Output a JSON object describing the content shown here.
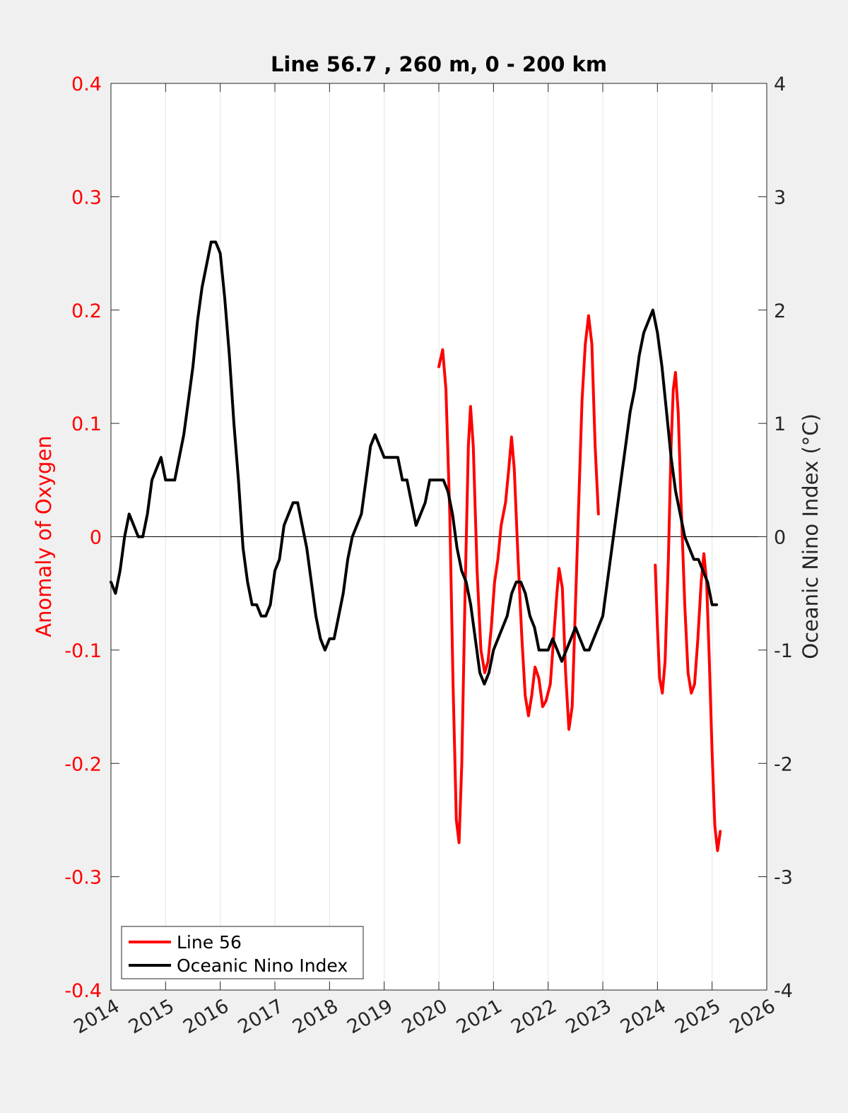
{
  "chart_data": {
    "type": "line",
    "title": "Line 56.7 , 260 m, 0 - 200 km",
    "xlabel": "",
    "ylabel_left": "Anomaly of Oxygen",
    "ylabel_right": "Oceanic Nino Index (°C)",
    "xlim": [
      2014,
      2026
    ],
    "ylim_left": [
      -0.4,
      0.4
    ],
    "ylim_right": [
      -4,
      4
    ],
    "x_ticks": [
      2014,
      2015,
      2016,
      2017,
      2018,
      2019,
      2020,
      2021,
      2022,
      2023,
      2024,
      2025,
      2026
    ],
    "x_tick_labels": [
      "2014",
      "2015",
      "2016",
      "2017",
      "2018",
      "2019",
      "2020",
      "2021",
      "2022",
      "2023",
      "2024",
      "2025",
      "2026"
    ],
    "y_left_ticks": [
      -0.4,
      -0.3,
      -0.2,
      -0.1,
      0,
      0.1,
      0.2,
      0.3,
      0.4
    ],
    "y_left_tick_labels": [
      "-0.4",
      "-0.3",
      "-0.2",
      "-0.1",
      "0",
      "0.1",
      "0.2",
      "0.3",
      "0.4"
    ],
    "y_right_ticks": [
      -4,
      -3,
      -2,
      -1,
      0,
      1,
      2,
      3,
      4
    ],
    "y_right_tick_labels": [
      "-4",
      "-3",
      "-2",
      "-1",
      "0",
      "1",
      "2",
      "3",
      "4"
    ],
    "grid": "vertical only",
    "zero_line": true,
    "legend_position": "bottom-left",
    "colors": {
      "line56": "#ff0000",
      "oni": "#000000",
      "left_axis": "#ff0000",
      "right_axis": "#262626"
    },
    "series": [
      {
        "name": "Line 56",
        "axis": "left",
        "color": "#ff0000",
        "segments": [
          [
            [
              2020.0,
              0.15
            ],
            [
              2020.07,
              0.165
            ],
            [
              2020.13,
              0.13
            ],
            [
              2020.2,
              0.02
            ],
            [
              2020.26,
              -0.13
            ],
            [
              2020.32,
              -0.25
            ],
            [
              2020.37,
              -0.27
            ],
            [
              2020.42,
              -0.2
            ],
            [
              2020.48,
              -0.05
            ],
            [
              2020.54,
              0.08
            ],
            [
              2020.58,
              0.115
            ],
            [
              2020.63,
              0.08
            ],
            [
              2020.7,
              -0.03
            ],
            [
              2020.77,
              -0.1
            ],
            [
              2020.84,
              -0.12
            ],
            [
              2020.9,
              -0.11
            ],
            [
              2020.96,
              -0.08
            ],
            [
              2021.02,
              -0.04
            ],
            [
              2021.08,
              -0.02
            ],
            [
              2021.14,
              0.01
            ],
            [
              2021.22,
              0.03
            ],
            [
              2021.28,
              0.06
            ],
            [
              2021.33,
              0.088
            ],
            [
              2021.38,
              0.06
            ],
            [
              2021.45,
              -0.02
            ],
            [
              2021.52,
              -0.09
            ],
            [
              2021.58,
              -0.14
            ],
            [
              2021.64,
              -0.158
            ],
            [
              2021.7,
              -0.14
            ],
            [
              2021.76,
              -0.115
            ],
            [
              2021.83,
              -0.125
            ],
            [
              2021.9,
              -0.15
            ],
            [
              2021.96,
              -0.145
            ],
            [
              2022.04,
              -0.13
            ],
            [
              2022.1,
              -0.09
            ],
            [
              2022.16,
              -0.05
            ],
            [
              2022.2,
              -0.028
            ],
            [
              2022.26,
              -0.045
            ],
            [
              2022.32,
              -0.12
            ],
            [
              2022.38,
              -0.17
            ],
            [
              2022.44,
              -0.15
            ],
            [
              2022.5,
              -0.06
            ],
            [
              2022.56,
              0.03
            ],
            [
              2022.62,
              0.12
            ],
            [
              2022.68,
              0.17
            ],
            [
              2022.74,
              0.195
            ],
            [
              2022.8,
              0.17
            ],
            [
              2022.86,
              0.08
            ],
            [
              2022.92,
              0.02
            ]
          ],
          [
            [
              2023.96,
              -0.025
            ],
            [
              2024.0,
              -0.08
            ],
            [
              2024.04,
              -0.125
            ],
            [
              2024.09,
              -0.138
            ],
            [
              2024.14,
              -0.11
            ],
            [
              2024.2,
              -0.02
            ],
            [
              2024.25,
              0.08
            ],
            [
              2024.29,
              0.13
            ],
            [
              2024.33,
              0.145
            ],
            [
              2024.38,
              0.11
            ],
            [
              2024.44,
              0.02
            ],
            [
              2024.5,
              -0.06
            ],
            [
              2024.56,
              -0.12
            ],
            [
              2024.62,
              -0.138
            ],
            [
              2024.68,
              -0.13
            ],
            [
              2024.74,
              -0.09
            ],
            [
              2024.8,
              -0.04
            ],
            [
              2024.85,
              -0.015
            ],
            [
              2024.9,
              -0.04
            ],
            [
              2024.95,
              -0.11
            ],
            [
              2025.0,
              -0.19
            ],
            [
              2025.05,
              -0.255
            ],
            [
              2025.1,
              -0.277
            ],
            [
              2025.15,
              -0.26
            ]
          ]
        ]
      },
      {
        "name": "Oceanic Nino Index",
        "axis": "right",
        "color": "#000000",
        "points": [
          [
            2014.0,
            -0.4
          ],
          [
            2014.083,
            -0.5
          ],
          [
            2014.167,
            -0.3
          ],
          [
            2014.25,
            0.0
          ],
          [
            2014.333,
            0.2
          ],
          [
            2014.417,
            0.1
          ],
          [
            2014.5,
            0.0
          ],
          [
            2014.583,
            0.0
          ],
          [
            2014.667,
            0.2
          ],
          [
            2014.75,
            0.5
          ],
          [
            2014.833,
            0.6
          ],
          [
            2014.917,
            0.7
          ],
          [
            2015.0,
            0.5
          ],
          [
            2015.083,
            0.5
          ],
          [
            2015.167,
            0.5
          ],
          [
            2015.25,
            0.7
          ],
          [
            2015.333,
            0.9
          ],
          [
            2015.417,
            1.2
          ],
          [
            2015.5,
            1.5
          ],
          [
            2015.583,
            1.9
          ],
          [
            2015.667,
            2.2
          ],
          [
            2015.75,
            2.4
          ],
          [
            2015.833,
            2.6
          ],
          [
            2015.917,
            2.6
          ],
          [
            2016.0,
            2.5
          ],
          [
            2016.083,
            2.1
          ],
          [
            2016.167,
            1.6
          ],
          [
            2016.25,
            1.0
          ],
          [
            2016.333,
            0.5
          ],
          [
            2016.417,
            -0.1
          ],
          [
            2016.5,
            -0.4
          ],
          [
            2016.583,
            -0.6
          ],
          [
            2016.667,
            -0.6
          ],
          [
            2016.75,
            -0.7
          ],
          [
            2016.833,
            -0.7
          ],
          [
            2016.917,
            -0.6
          ],
          [
            2017.0,
            -0.3
          ],
          [
            2017.083,
            -0.2
          ],
          [
            2017.167,
            0.1
          ],
          [
            2017.25,
            0.2
          ],
          [
            2017.333,
            0.3
          ],
          [
            2017.417,
            0.3
          ],
          [
            2017.5,
            0.1
          ],
          [
            2017.583,
            -0.1
          ],
          [
            2017.667,
            -0.4
          ],
          [
            2017.75,
            -0.7
          ],
          [
            2017.833,
            -0.9
          ],
          [
            2017.917,
            -1.0
          ],
          [
            2018.0,
            -0.9
          ],
          [
            2018.083,
            -0.9
          ],
          [
            2018.167,
            -0.7
          ],
          [
            2018.25,
            -0.5
          ],
          [
            2018.333,
            -0.2
          ],
          [
            2018.417,
            0.0
          ],
          [
            2018.5,
            0.1
          ],
          [
            2018.583,
            0.2
          ],
          [
            2018.667,
            0.5
          ],
          [
            2018.75,
            0.8
          ],
          [
            2018.833,
            0.9
          ],
          [
            2018.917,
            0.8
          ],
          [
            2019.0,
            0.7
          ],
          [
            2019.083,
            0.7
          ],
          [
            2019.167,
            0.7
          ],
          [
            2019.25,
            0.7
          ],
          [
            2019.333,
            0.5
          ],
          [
            2019.417,
            0.5
          ],
          [
            2019.5,
            0.3
          ],
          [
            2019.583,
            0.1
          ],
          [
            2019.667,
            0.2
          ],
          [
            2019.75,
            0.3
          ],
          [
            2019.833,
            0.5
          ],
          [
            2019.917,
            0.5
          ],
          [
            2020.0,
            0.5
          ],
          [
            2020.083,
            0.5
          ],
          [
            2020.167,
            0.4
          ],
          [
            2020.25,
            0.2
          ],
          [
            2020.333,
            -0.1
          ],
          [
            2020.417,
            -0.3
          ],
          [
            2020.5,
            -0.4
          ],
          [
            2020.583,
            -0.6
          ],
          [
            2020.667,
            -0.9
          ],
          [
            2020.75,
            -1.2
          ],
          [
            2020.833,
            -1.3
          ],
          [
            2020.917,
            -1.2
          ],
          [
            2021.0,
            -1.0
          ],
          [
            2021.083,
            -0.9
          ],
          [
            2021.167,
            -0.8
          ],
          [
            2021.25,
            -0.7
          ],
          [
            2021.333,
            -0.5
          ],
          [
            2021.417,
            -0.4
          ],
          [
            2021.5,
            -0.4
          ],
          [
            2021.583,
            -0.5
          ],
          [
            2021.667,
            -0.7
          ],
          [
            2021.75,
            -0.8
          ],
          [
            2021.833,
            -1.0
          ],
          [
            2021.917,
            -1.0
          ],
          [
            2022.0,
            -1.0
          ],
          [
            2022.083,
            -0.9
          ],
          [
            2022.167,
            -1.0
          ],
          [
            2022.25,
            -1.1
          ],
          [
            2022.333,
            -1.0
          ],
          [
            2022.417,
            -0.9
          ],
          [
            2022.5,
            -0.8
          ],
          [
            2022.583,
            -0.9
          ],
          [
            2022.667,
            -1.0
          ],
          [
            2022.75,
            -1.0
          ],
          [
            2022.833,
            -0.9
          ],
          [
            2022.917,
            -0.8
          ],
          [
            2023.0,
            -0.7
          ],
          [
            2023.083,
            -0.4
          ],
          [
            2023.167,
            -0.1
          ],
          [
            2023.25,
            0.2
          ],
          [
            2023.333,
            0.5
          ],
          [
            2023.417,
            0.8
          ],
          [
            2023.5,
            1.1
          ],
          [
            2023.583,
            1.3
          ],
          [
            2023.667,
            1.6
          ],
          [
            2023.75,
            1.8
          ],
          [
            2023.833,
            1.9
          ],
          [
            2023.917,
            2.0
          ],
          [
            2024.0,
            1.8
          ],
          [
            2024.083,
            1.5
          ],
          [
            2024.167,
            1.1
          ],
          [
            2024.25,
            0.7
          ],
          [
            2024.333,
            0.4
          ],
          [
            2024.417,
            0.2
          ],
          [
            2024.5,
            0.0
          ],
          [
            2024.583,
            -0.1
          ],
          [
            2024.667,
            -0.2
          ],
          [
            2024.75,
            -0.2
          ],
          [
            2024.833,
            -0.3
          ],
          [
            2024.917,
            -0.4
          ],
          [
            2025.0,
            -0.6
          ],
          [
            2025.083,
            -0.6
          ]
        ]
      }
    ]
  }
}
